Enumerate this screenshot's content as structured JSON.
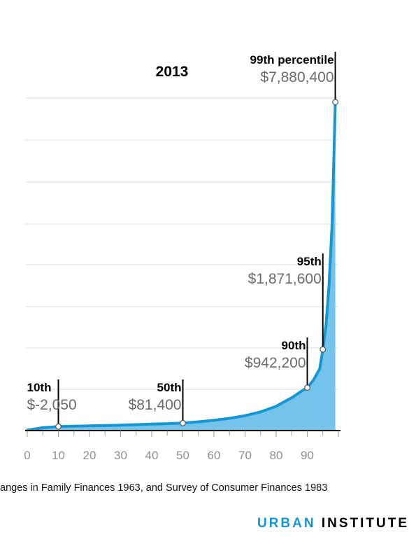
{
  "chart_data": {
    "type": "area",
    "title": "2013",
    "x": [
      0,
      5,
      10,
      15,
      20,
      25,
      30,
      35,
      40,
      45,
      50,
      55,
      60,
      65,
      70,
      75,
      80,
      85,
      88,
      90,
      92,
      94,
      95,
      96,
      97,
      98,
      99
    ],
    "y": [
      -90000,
      -30000,
      -2050,
      8000,
      15000,
      25000,
      33000,
      45000,
      56000,
      68000,
      81400,
      112000,
      152000,
      198000,
      262000,
      355000,
      490000,
      700000,
      850000,
      942200,
      1130000,
      1400000,
      1871600,
      2450000,
      3420000,
      4950000,
      7880400
    ],
    "xlim": [
      0,
      100
    ],
    "ylim": [
      -100000,
      9000000
    ],
    "xticks": [
      0,
      10,
      20,
      30,
      40,
      50,
      60,
      70,
      80,
      90
    ],
    "tick_labels": [
      "0",
      "10",
      "20",
      "30",
      "40",
      "50",
      "60",
      "70",
      "80",
      "90"
    ],
    "grid": true,
    "annotations": [
      {
        "x": 10,
        "y": -2050,
        "label": "10th",
        "value": "$-2,050"
      },
      {
        "x": 50,
        "y": 81400,
        "label": "50th",
        "value": "$81,400"
      },
      {
        "x": 90,
        "y": 942200,
        "label": "90th",
        "value": "$942,200"
      },
      {
        "x": 95,
        "y": 1871600,
        "label": "95th",
        "value": "$1,871,600"
      },
      {
        "x": 99,
        "y": 7880400,
        "label": "99th percentile",
        "value": "$7,880,400"
      }
    ]
  },
  "colors": {
    "line": "#1696d2",
    "fill": "#73c3ea",
    "grid": "#dcdcdc",
    "axis": "#000000",
    "tick_text": "#8f8f8f",
    "value_text": "#6b6b6b",
    "brand_accent": "#1696d2"
  },
  "source": "anges in Family Finances 1963, and Survey of Consumer Finances 1983",
  "brand": {
    "part1": "URBAN",
    "part2": "INSTITUTE"
  }
}
